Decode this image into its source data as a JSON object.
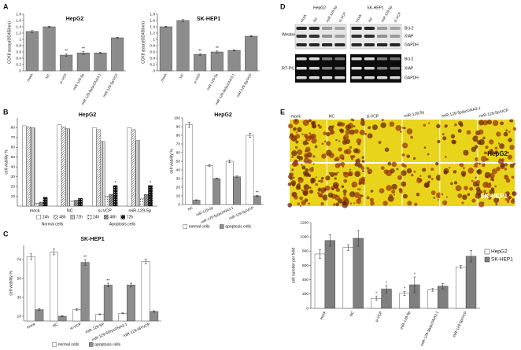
{
  "panel_labels": [
    "A",
    "B",
    "C",
    "D",
    "E"
  ],
  "blot": {
    "cell_lines": [
      "HepG2",
      "SK-HEP1"
    ],
    "lanes": [
      "mock",
      "NC",
      "miR-129-5p",
      "si-VCP"
    ],
    "methods": [
      "Western Blot",
      "RT-PCR"
    ],
    "targets": [
      "Bcl-2",
      "XIAP",
      "GAPDH"
    ]
  },
  "micrographs": {
    "conditions": [
      "mock",
      "NC",
      "si-VCP",
      "miR-129-5p",
      "miR-129-5p/pcDNA3.1",
      "miR-129-5p/VCP"
    ],
    "cell_lines": [
      "HepG2",
      "SK-HEP1"
    ]
  },
  "chart_data": [
    {
      "type": "bar",
      "title": "HepG2",
      "ylabel": "CCK8 assay(OD450nm)",
      "categories": [
        "mock",
        "NC",
        "si-VCP",
        "miR-129-5p",
        "miR-129-5p/pcDNA3.1",
        "miR-129-5p/VCP"
      ],
      "series": [
        {
          "name": "HepG2",
          "color": "#8c8c8c",
          "values": [
            1.25,
            1.4,
            0.5,
            0.57,
            0.57,
            1.05
          ],
          "errors": [
            0.03,
            0.02,
            0.04,
            0.05,
            0.02,
            0.02
          ],
          "significance": [
            null,
            null,
            "**",
            "**",
            null,
            null
          ]
        }
      ],
      "ylim": [
        0,
        1.8
      ],
      "yticks": [
        0,
        0.2,
        0.4,
        0.6,
        0.8,
        1,
        1.2,
        1.4,
        1.6,
        1.8
      ]
    },
    {
      "type": "bar",
      "title": "SK-HEP1",
      "ylabel": "CCK8 assay(OD450nm)",
      "categories": [
        "mock",
        "NC",
        "si-VCP",
        "miR-129-5p",
        "miR-129-5p/pcDNA3.1",
        "miR-129-5p/VCP"
      ],
      "series": [
        {
          "name": "SK-HEP1",
          "color": "#8c8c8c",
          "values": [
            1.4,
            1.6,
            0.52,
            0.6,
            0.65,
            1.1
          ],
          "errors": [
            0.02,
            0.03,
            0.03,
            0.03,
            0.02,
            0.02
          ],
          "significance": [
            null,
            null,
            "**",
            "**",
            null,
            null
          ]
        }
      ],
      "ylim": [
        0,
        1.8
      ],
      "yticks": [
        0,
        0.2,
        0.4,
        0.6,
        0.8,
        1,
        1.2,
        1.4,
        1.6,
        1.8
      ]
    },
    {
      "type": "bar",
      "title": "HepG2",
      "ylabel": "cell viability %",
      "categories": [
        "mock",
        "NC",
        "si-VCP",
        "miR-129-5p"
      ],
      "group_labels": [
        "Normal cells",
        "Apoptosis cells"
      ],
      "series": [
        {
          "name": "24h",
          "color": "#ffffff",
          "values": [
            82,
            83,
            80,
            80
          ]
        },
        {
          "name": "48h",
          "color": "#ffffff",
          "pattern": "diagonal",
          "values": [
            81,
            81,
            78,
            78
          ]
        },
        {
          "name": "72h",
          "color": "#d9d9d9",
          "pattern": "vertical",
          "values": [
            80,
            79,
            66,
            67
          ]
        },
        {
          "name": "24h",
          "color": "#ffffff",
          "pattern": "dots",
          "values": [
            3,
            5,
            10,
            8
          ]
        },
        {
          "name": "48h",
          "color": "#9a9a9a",
          "pattern": "diagonal",
          "values": [
            4,
            6,
            12,
            12
          ]
        },
        {
          "name": "72h",
          "color": "#111111",
          "pattern": "dots",
          "values": [
            9,
            8,
            21,
            21
          ],
          "significance": [
            null,
            null,
            "*",
            "*"
          ]
        }
      ],
      "ylim": [
        0,
        90
      ],
      "yticks": [
        10,
        20,
        30,
        40,
        50,
        60,
        70,
        80
      ],
      "legend": "bottom"
    },
    {
      "type": "bar",
      "title": "HepG2",
      "ylabel": "cell viability %",
      "categories": [
        "NC",
        "miR-129-5p",
        "miR-129-5p/pcDNA3.1",
        "miR-129-5p/VCP"
      ],
      "series": [
        {
          "name": "normal cells",
          "color": "#ffffff",
          "values": [
            92,
            45,
            50,
            80
          ],
          "errors": [
            3,
            1,
            1.5,
            2.5
          ]
        },
        {
          "name": "apoptosis cells",
          "color": "#8c8c8c",
          "values": [
            5,
            30,
            32,
            10
          ],
          "errors": [
            0.5,
            0.5,
            1,
            0.8
          ],
          "significance": [
            null,
            null,
            null,
            "**"
          ]
        }
      ],
      "ylim": [
        0,
        100
      ],
      "yticks": [
        0,
        10,
        20,
        30,
        40,
        50,
        60,
        70,
        80,
        90,
        100
      ],
      "legend": "bottom"
    },
    {
      "type": "bar",
      "title": "SK-HEP1",
      "ylabel": "cell viability %",
      "categories": [
        "mock",
        "NC",
        "si-VCP",
        "miR-129-5P",
        "miR-129-5P/pcDNA3.1",
        "miR-129-5P/VCP"
      ],
      "series": [
        {
          "name": "normal cells",
          "color": "#ffffff",
          "values": [
            73,
            78,
            17,
            12,
            13,
            68
          ],
          "errors": [
            3,
            3,
            1,
            0.5,
            0.5,
            2.5
          ]
        },
        {
          "name": "apoptosis cells",
          "color": "#8c8c8c",
          "values": [
            17,
            10,
            67,
            43,
            43,
            15
          ],
          "errors": [
            1,
            0.5,
            3,
            2,
            2,
            0.8
          ],
          "significance": [
            null,
            null,
            "**",
            "**",
            null,
            null
          ]
        }
      ],
      "ylim": [
        5,
        85
      ],
      "yticks": [
        10,
        30,
        50,
        70
      ],
      "legend": "bottom"
    },
    {
      "type": "bar",
      "ylabel": "cell number per field",
      "categories": [
        "mock",
        "NC",
        "si-VCP",
        "miR-129-5p",
        "miR-129-5p/pcDNA3.1",
        "miR-129-5p/VCP"
      ],
      "series": [
        {
          "name": "HepG2",
          "color": "#ffffff",
          "values": [
            760,
            850,
            140,
            210,
            260,
            580
          ],
          "errors": [
            60,
            40,
            30,
            30,
            20,
            20
          ],
          "significance": [
            null,
            null,
            "*",
            "*",
            null,
            null
          ]
        },
        {
          "name": "SK-HEP1",
          "color": "#7f7f7f",
          "values": [
            950,
            980,
            270,
            330,
            310,
            730
          ],
          "errors": [
            80,
            110,
            50,
            110,
            40,
            80
          ],
          "significance": [
            null,
            null,
            "*",
            "*",
            null,
            null
          ]
        }
      ],
      "ylim": [
        0,
        1200
      ],
      "yticks": [
        0,
        200,
        400,
        600,
        800,
        1000,
        1200
      ],
      "legend": "right"
    }
  ]
}
